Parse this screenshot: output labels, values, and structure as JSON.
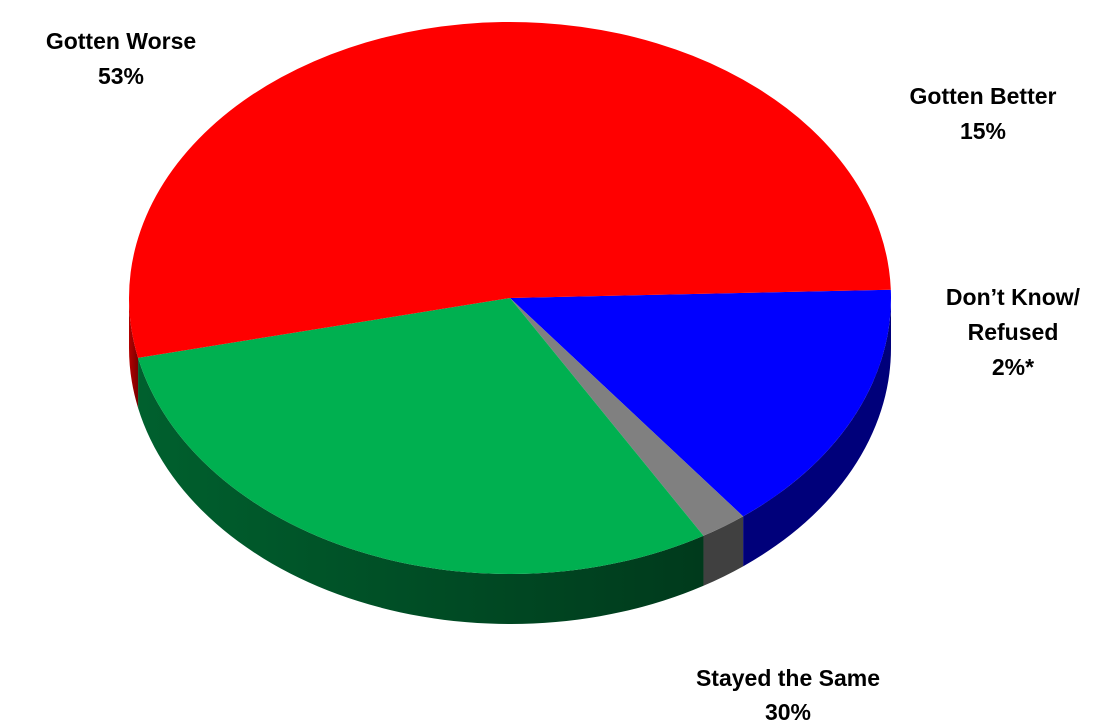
{
  "chart_data": {
    "type": "pie",
    "style": "3d",
    "slices": [
      {
        "label": "Gotten Better",
        "value_label": "15%",
        "value": 15,
        "color": "#0000FF",
        "side_color": "#00007A"
      },
      {
        "label": "Don’t Know/ Refused",
        "label_lines": [
          "Don’t Know/",
          "Refused"
        ],
        "value_label": "2%*",
        "value": 2,
        "color": "#808080",
        "side_color": "#404040"
      },
      {
        "label": "Stayed the Same",
        "value_label": "30%",
        "value": 30,
        "color": "#00B050",
        "side_color": "#00592B"
      },
      {
        "label": "Gotten Worse",
        "value_label": "53%",
        "value": 53,
        "color": "#FF0000",
        "side_color": "#8C0000"
      }
    ]
  }
}
